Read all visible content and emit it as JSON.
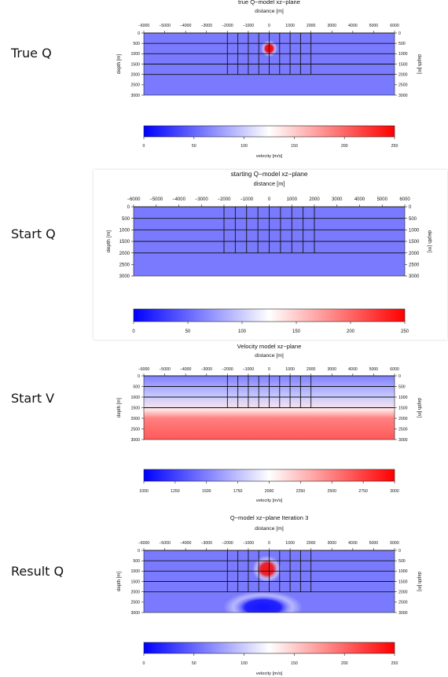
{
  "row_labels": [
    "True Q",
    "Start Q",
    "Start V",
    "Result Q"
  ],
  "colors": {
    "low": "#0000ff",
    "mid": "#ffffff",
    "high": "#ff0000"
  },
  "chart_data": [
    {
      "type": "heatmap",
      "title": "true Q−model xz−plane",
      "xlabel": "distance [m]",
      "ylabel": "depth [m]",
      "x_ticks": [
        "−6000",
        "−5000",
        "−4000",
        "−3000",
        "−2000",
        "−1000",
        "0",
        "1000",
        "2000",
        "3000",
        "4000",
        "5000",
        "6000"
      ],
      "y_ticks": [
        "0",
        "500",
        "1000",
        "1500",
        "2000",
        "2500",
        "3000"
      ],
      "xlim": [
        -6000,
        6000
      ],
      "ylim": [
        0,
        3000
      ],
      "colorbar": {
        "label": "velocity [m/s]",
        "ticks": [
          "0",
          "50",
          "100",
          "150",
          "200",
          "250"
        ],
        "range": [
          0,
          250
        ]
      },
      "background_value": 60,
      "anomalies": [
        {
          "x": 0,
          "z": 750,
          "value": 250,
          "rx": 400,
          "rz": 400
        }
      ],
      "gradient_stops": [],
      "grid_depths": [
        0,
        500,
        1000,
        1500,
        2000
      ],
      "grid_x": [
        -2000,
        -1500,
        -1000,
        -500,
        0,
        500,
        1000,
        1500,
        2000
      ],
      "grid_x_depth": 2000
    },
    {
      "type": "heatmap",
      "title": "starting Q−model xz−plane",
      "xlabel": "distance [m]",
      "ylabel": "depth [m]",
      "x_ticks": [
        "−6000",
        "−5000",
        "−4000",
        "−3000",
        "−2000",
        "−1000",
        "0",
        "1000",
        "2000",
        "3000",
        "4000",
        "5000",
        "6000"
      ],
      "y_ticks": [
        "0",
        "500",
        "1000",
        "1500",
        "2000",
        "2500",
        "3000"
      ],
      "xlim": [
        -6000,
        6000
      ],
      "ylim": [
        0,
        3000
      ],
      "colorbar": {
        "label": "",
        "ticks": [
          "0",
          "50",
          "100",
          "150",
          "200",
          "250"
        ],
        "range": [
          0,
          250
        ]
      },
      "background_value": 60,
      "anomalies": [],
      "gradient_stops": [],
      "grid_depths": [
        0,
        500,
        1000,
        1500,
        2000
      ],
      "grid_x": [
        -2000,
        -1500,
        -1000,
        -500,
        0,
        500,
        1000,
        1500,
        2000
      ],
      "grid_x_depth": 2000
    },
    {
      "type": "heatmap",
      "title": "Velocity model xz−plane",
      "xlabel": "distance [m]",
      "ylabel": "depth [m]",
      "x_ticks": [
        "−6000",
        "−5000",
        "−4000",
        "−3000",
        "−2000",
        "−1000",
        "0",
        "1000",
        "2000",
        "3000",
        "4000",
        "5000",
        "6000"
      ],
      "y_ticks": [
        "0",
        "500",
        "1000",
        "1500",
        "2000",
        "2500",
        "3000"
      ],
      "xlim": [
        -6000,
        6000
      ],
      "ylim": [
        0,
        3000
      ],
      "colorbar": {
        "label": "velocity [m/s]",
        "ticks": [
          "1000",
          "1250",
          "1500",
          "1750",
          "2000",
          "2250",
          "2500",
          "2750",
          "3000"
        ],
        "range": [
          1000,
          3000
        ]
      },
      "background_value": null,
      "anomalies": [],
      "gradient_stops": [
        {
          "z": 0,
          "value": 1500
        },
        {
          "z": 1000,
          "value": 1800
        },
        {
          "z": 1600,
          "value": 2100
        },
        {
          "z": 2000,
          "value": 2500
        },
        {
          "z": 3000,
          "value": 2650
        }
      ],
      "grid_depths": [
        0,
        500,
        1000,
        1500
      ],
      "grid_x": [
        -2000,
        -1500,
        -1000,
        -500,
        0,
        500,
        1000,
        1500,
        2000
      ],
      "grid_x_depth": 1500
    },
    {
      "type": "heatmap",
      "title": "Q−model xz−plane Iteration 3",
      "xlabel": "distance [m]",
      "ylabel": "depth [m]",
      "x_ticks": [
        "−6000",
        "−5000",
        "−4000",
        "−3000",
        "−2000",
        "−1000",
        "0",
        "1000",
        "2000",
        "3000",
        "4000",
        "5000",
        "6000"
      ],
      "y_ticks": [
        "0",
        "500",
        "1000",
        "1500",
        "2000",
        "2500",
        "3000"
      ],
      "xlim": [
        -6000,
        6000
      ],
      "ylim": [
        0,
        3000
      ],
      "colorbar": {
        "label": "velocity [m/s]",
        "ticks": [
          "0",
          "50",
          "100",
          "150",
          "200",
          "250"
        ],
        "range": [
          0,
          250
        ]
      },
      "background_value": 60,
      "anomalies": [
        {
          "x": -100,
          "z": 900,
          "value": 240,
          "rx": 700,
          "rz": 650
        },
        {
          "x": -300,
          "z": 2750,
          "value": 10,
          "rx": 1900,
          "rz": 800
        }
      ],
      "gradient_stops": [],
      "grid_depths": [
        0,
        500,
        1000,
        1500,
        2000
      ],
      "grid_x": [
        -2000,
        -1500,
        -1000,
        -500,
        0,
        500,
        1000,
        1500,
        2000
      ],
      "grid_x_depth": 2000
    }
  ]
}
